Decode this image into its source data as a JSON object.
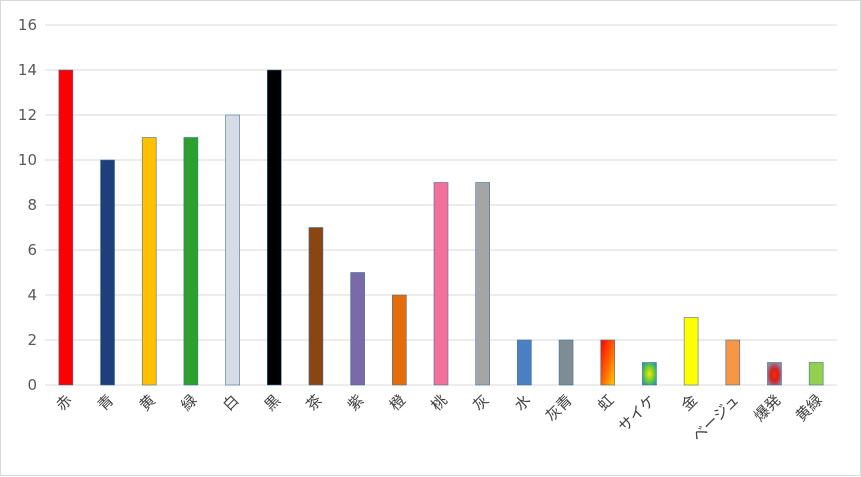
{
  "chart_data": {
    "type": "bar",
    "title": "",
    "xlabel": "",
    "ylabel": "",
    "ylim": [
      0,
      16
    ],
    "yticks": [
      0,
      2,
      4,
      6,
      8,
      10,
      12,
      14,
      16
    ],
    "grid": true,
    "legend": "none",
    "categories": [
      "赤",
      "青",
      "黄",
      "緑",
      "白",
      "黒",
      "茶",
      "紫",
      "橙",
      "桃",
      "灰",
      "水",
      "灰青",
      "虹",
      "サイケ",
      "金",
      "ベージュ",
      "爆発",
      "黄緑"
    ],
    "values": [
      14,
      10,
      11,
      11,
      12,
      14,
      7,
      5,
      4,
      9,
      9,
      2,
      2,
      2,
      1,
      3,
      2,
      1,
      1
    ],
    "colors": [
      "#ff0000",
      "#1f3f7a",
      "#ffc000",
      "#2ca02c",
      "#d6dce4",
      "#000000",
      "#8b4513",
      "#7a6aa8",
      "#e46c0a",
      "#f4709a",
      "#a5a5a5",
      "#4a7fc1",
      "#7f8c96",
      "#rainbow",
      "#psychedelic",
      "#ffff00",
      "#f79646",
      "#explosion",
      "#92d050"
    ]
  }
}
